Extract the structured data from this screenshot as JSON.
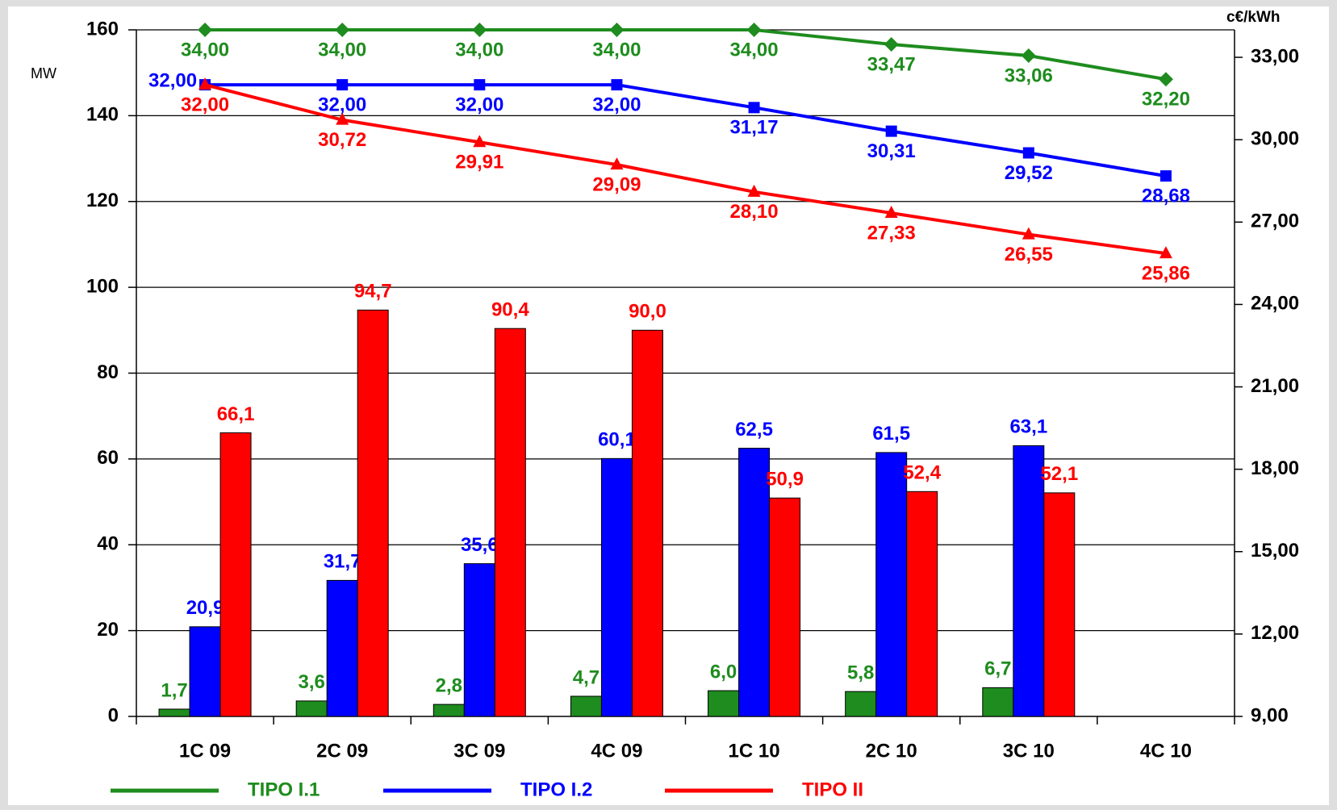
{
  "chart_data": {
    "type": "bar_line",
    "ylabel": "MW",
    "y2label": "c€/kWh",
    "categories": [
      "1C 09",
      "2C 09",
      "3C 09",
      "4C 09",
      "1C 10",
      "2C 10",
      "3C 10",
      "4C 10"
    ],
    "ylim": [
      0,
      160
    ],
    "yticks": [
      0,
      20,
      40,
      60,
      80,
      100,
      120,
      140,
      160
    ],
    "y2lim": [
      9,
      34
    ],
    "y2ticks": [
      {
        "value": 9,
        "label": "9,00"
      },
      {
        "value": 12,
        "label": "12,00"
      },
      {
        "value": 15,
        "label": "15,00"
      },
      {
        "value": 18,
        "label": "18,00"
      },
      {
        "value": 21,
        "label": "21,00"
      },
      {
        "value": 24,
        "label": "24,00"
      },
      {
        "value": 27,
        "label": "27,00"
      },
      {
        "value": 30,
        "label": "30,00"
      },
      {
        "value": 33,
        "label": "33,00"
      }
    ],
    "grid": true,
    "legend": "bottom",
    "series": [
      {
        "name": "TIPO I.1",
        "color": "#1e8c1e",
        "marker": "diamond",
        "values": [
          1.7,
          3.6,
          2.8,
          4.7,
          6.0,
          5.8,
          6.7,
          null
        ],
        "value_labels": [
          "1,7",
          "3,6",
          "2,8",
          "4,7",
          "6,0",
          "5,8",
          "6,7",
          null
        ],
        "line": {
          "axis": "y2",
          "values": [
            34,
            34,
            34,
            34,
            34,
            33.47,
            33.06,
            32.2
          ],
          "value_labels": [
            "34,00",
            "34,00",
            "34,00",
            "34,00",
            "34,00",
            "33,47",
            "33,06",
            "32,20"
          ]
        }
      },
      {
        "name": "TIPO I.2",
        "color": "#0000ff",
        "marker": "square",
        "values": [
          20.9,
          31.7,
          35.6,
          60.1,
          62.5,
          61.5,
          63.1,
          null
        ],
        "value_labels": [
          "20,9",
          "31,7",
          "35,6",
          "60,1",
          "62,5",
          "61,5",
          "63,1",
          null
        ],
        "line": {
          "axis": "y2",
          "values": [
            32,
            32,
            32,
            32,
            31.17,
            30.31,
            29.52,
            28.68
          ],
          "value_labels": [
            "32,00",
            "32,00",
            "32,00",
            "32,00",
            "31,17",
            "30,31",
            "29,52",
            "28,68"
          ]
        }
      },
      {
        "name": "TIPO II",
        "color": "#ff0000",
        "marker": "triangle",
        "values": [
          66.1,
          94.7,
          90.4,
          90.0,
          50.9,
          52.4,
          52.1,
          null
        ],
        "value_labels": [
          "66,1",
          "94,7",
          "90,4",
          "90,0",
          "50,9",
          "52,4",
          "52,1",
          null
        ],
        "line": {
          "axis": "y2",
          "values": [
            32,
            30.72,
            29.91,
            29.09,
            28.1,
            27.33,
            26.55,
            25.86
          ],
          "value_labels": [
            "32,00",
            "30,72",
            "29,91",
            "29,09",
            "28,10",
            "27,33",
            "26,55",
            "25,86"
          ]
        }
      }
    ]
  }
}
